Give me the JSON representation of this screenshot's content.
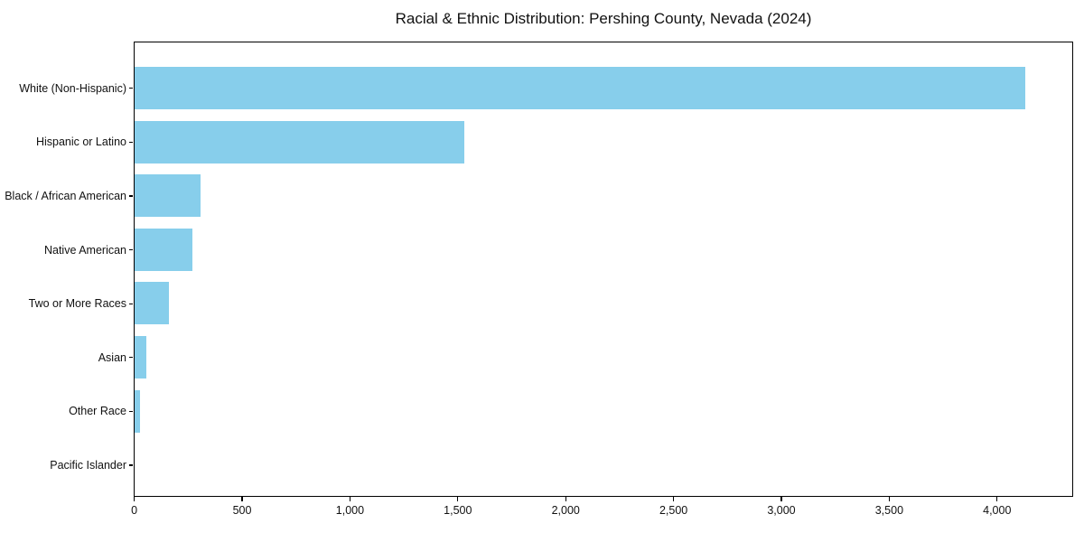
{
  "chart_data": {
    "type": "bar",
    "orientation": "horizontal",
    "title": "Racial & Ethnic Distribution: Pershing County, Nevada (2024)",
    "categories": [
      "White (Non-Hispanic)",
      "Hispanic or Latino",
      "Black / African American",
      "Native American",
      "Two or More Races",
      "Asian",
      "Other Race",
      "Pacific Islander"
    ],
    "values": [
      4130,
      1530,
      305,
      270,
      160,
      55,
      25,
      0
    ],
    "xlabel": "",
    "ylabel": "",
    "xlim": [
      0,
      4350
    ],
    "x_ticks": [
      0,
      500,
      1000,
      1500,
      2000,
      2500,
      3000,
      3500,
      4000
    ],
    "x_tick_labels": [
      "0",
      "500",
      "1,000",
      "1,500",
      "2,000",
      "2,500",
      "3,000",
      "3,500",
      "4,000"
    ],
    "bar_color": "#87CEEB",
    "grid": false,
    "legend": null
  }
}
